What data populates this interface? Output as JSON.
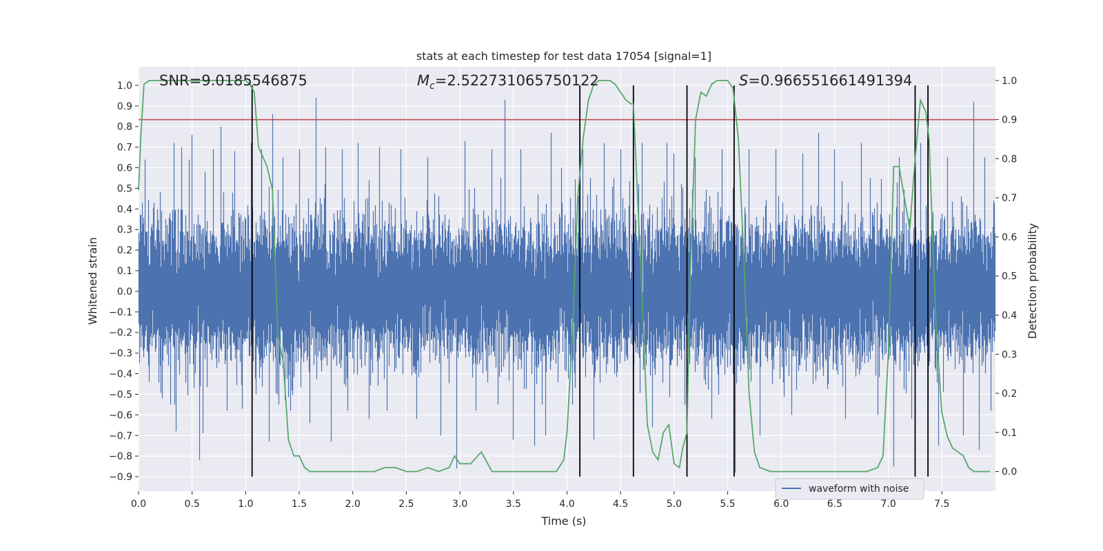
{
  "chart_data": {
    "type": "line",
    "title": "stats at each timestep for test data 17054 [signal=1]",
    "xlabel": "Time (s)",
    "ylabel_left": "Whitened strain",
    "ylabel_right": "Detection probability",
    "xlim": [
      0.0,
      8.0
    ],
    "ylim_left": [
      -0.97,
      1.09
    ],
    "ylim_right": [
      -0.05,
      1.035
    ],
    "x_ticks": [
      0.0,
      0.5,
      1.0,
      1.5,
      2.0,
      2.5,
      3.0,
      3.5,
      4.0,
      4.5,
      5.0,
      5.5,
      6.0,
      6.5,
      7.0,
      7.5
    ],
    "x_tick_labels": [
      "0.0",
      "0.5",
      "1.0",
      "1.5",
      "2.0",
      "2.5",
      "3.0",
      "3.5",
      "4.0",
      "4.5",
      "5.0",
      "5.5",
      "6.0",
      "6.5",
      "7.0",
      "7.5"
    ],
    "y_left_ticks": [
      1.0,
      0.9,
      0.8,
      0.7,
      0.6,
      0.5,
      0.4,
      0.3,
      0.2,
      0.1,
      0.0,
      -0.1,
      -0.2,
      -0.3,
      -0.4,
      -0.5,
      -0.6,
      -0.7,
      -0.8,
      -0.9
    ],
    "y_left_tick_labels": [
      "1.0",
      "0.9",
      "0.8",
      "0.7",
      "0.6",
      "0.5",
      "0.4",
      "0.3",
      "0.2",
      "0.1",
      "0.0",
      "−0.1",
      "−0.2",
      "−0.3",
      "−0.4",
      "−0.5",
      "−0.6",
      "−0.7",
      "−0.8",
      "−0.9"
    ],
    "y_right_ticks": [
      1.0,
      0.9,
      0.8,
      0.7,
      0.6,
      0.5,
      0.4,
      0.3,
      0.2,
      0.1,
      0.0
    ],
    "y_right_tick_labels": [
      "1.0",
      "0.9",
      "0.8",
      "0.7",
      "0.6",
      "0.5",
      "0.4",
      "0.3",
      "0.2",
      "0.1",
      "0.0"
    ],
    "grid": true,
    "legend": {
      "position": "lower-right",
      "entries": [
        {
          "name": "waveform with noise",
          "color": "#4c72b0"
        }
      ]
    },
    "annotations": {
      "snr": "SNR=9.0185546875",
      "mc_symbol": "M",
      "mc_sub": "c",
      "mc_value": "=2.522731065750122",
      "s_symbol": "S",
      "s_value": "=0.966551661491394"
    },
    "threshold": {
      "value": 0.9,
      "axis": "right",
      "color": "#c44e52"
    },
    "vertical_lines": [
      1.06,
      4.12,
      4.62,
      5.12,
      5.56,
      7.25,
      7.37
    ],
    "vertical_line_range_left": [
      -0.9,
      1.0
    ],
    "waveform": {
      "name": "waveform with noise",
      "color": "#4c72b0",
      "sample_rate_hz": 2048,
      "noise_sigma": 0.16,
      "spikes": [
        [
          0.06,
          0.64
        ],
        [
          0.1,
          -0.44
        ],
        [
          0.22,
          -0.52
        ],
        [
          0.33,
          0.72
        ],
        [
          0.35,
          -0.68
        ],
        [
          0.4,
          0.7
        ],
        [
          0.47,
          0.64
        ],
        [
          0.5,
          0.76
        ],
        [
          0.52,
          -0.47
        ],
        [
          0.57,
          -0.82
        ],
        [
          0.6,
          -0.69
        ],
        [
          0.62,
          0.58
        ],
        [
          0.7,
          0.69
        ],
        [
          0.77,
          0.8
        ],
        [
          0.83,
          -0.58
        ],
        [
          0.9,
          0.68
        ],
        [
          0.97,
          -0.57
        ],
        [
          1.05,
          0.72
        ],
        [
          1.1,
          -0.5
        ],
        [
          1.15,
          0.69
        ],
        [
          1.22,
          -0.73
        ],
        [
          1.25,
          0.86
        ],
        [
          1.3,
          -0.5
        ],
        [
          1.35,
          0.65
        ],
        [
          1.42,
          -0.58
        ],
        [
          1.5,
          0.69
        ],
        [
          1.6,
          -0.64
        ],
        [
          1.66,
          0.94
        ],
        [
          1.75,
          0.7
        ],
        [
          1.8,
          -0.73
        ],
        [
          1.9,
          0.69
        ],
        [
          1.95,
          -0.58
        ],
        [
          2.05,
          0.72
        ],
        [
          2.15,
          -0.62
        ],
        [
          2.25,
          0.7
        ],
        [
          2.32,
          -0.58
        ],
        [
          2.45,
          0.69
        ],
        [
          2.6,
          -0.62
        ],
        [
          2.7,
          0.65
        ],
        [
          2.82,
          -0.7
        ],
        [
          2.97,
          -0.86
        ],
        [
          3.05,
          0.73
        ],
        [
          3.15,
          -0.58
        ],
        [
          3.3,
          0.69
        ],
        [
          3.42,
          0.93
        ],
        [
          3.5,
          -0.72
        ],
        [
          3.57,
          0.69
        ],
        [
          3.7,
          -0.75
        ],
        [
          3.8,
          -0.7
        ],
        [
          3.85,
          0.77
        ],
        [
          3.95,
          0.6
        ],
        [
          4.05,
          -0.55
        ],
        [
          4.15,
          0.69
        ],
        [
          4.25,
          -0.72
        ],
        [
          4.35,
          0.72
        ],
        [
          4.5,
          0.69
        ],
        [
          4.62,
          -0.73
        ],
        [
          4.7,
          0.72
        ],
        [
          4.8,
          -0.66
        ],
        [
          4.93,
          0.72
        ],
        [
          5.0,
          0.67
        ],
        [
          5.1,
          -0.55
        ],
        [
          5.2,
          0.65
        ],
        [
          5.35,
          -0.62
        ],
        [
          5.45,
          0.69
        ],
        [
          5.57,
          -0.88
        ],
        [
          5.7,
          0.69
        ],
        [
          5.8,
          -0.7
        ],
        [
          5.95,
          0.69
        ],
        [
          6.1,
          -0.6
        ],
        [
          6.2,
          0.67
        ],
        [
          6.35,
          0.77
        ],
        [
          6.5,
          0.69
        ],
        [
          6.6,
          -0.62
        ],
        [
          6.75,
          0.72
        ],
        [
          6.9,
          -0.6
        ],
        [
          7.05,
          -0.85
        ],
        [
          7.1,
          0.65
        ],
        [
          7.22,
          -0.62
        ],
        [
          7.3,
          0.72
        ],
        [
          7.47,
          -0.75
        ],
        [
          7.55,
          0.65
        ],
        [
          7.7,
          -0.7
        ],
        [
          7.8,
          0.92
        ],
        [
          7.85,
          -0.77
        ],
        [
          7.9,
          0.65
        ],
        [
          7.96,
          -0.58
        ]
      ]
    },
    "probability": {
      "color": "#55a868",
      "x": [
        0.0,
        0.02,
        0.05,
        0.1,
        0.2,
        0.3,
        0.5,
        0.7,
        0.9,
        1.0,
        1.04,
        1.08,
        1.12,
        1.2,
        1.25,
        1.3,
        1.35,
        1.4,
        1.45,
        1.5,
        1.55,
        1.6,
        1.7,
        1.8,
        1.9,
        2.0,
        2.1,
        2.2,
        2.3,
        2.4,
        2.5,
        2.6,
        2.7,
        2.8,
        2.9,
        2.95,
        3.0,
        3.1,
        3.2,
        3.3,
        3.4,
        3.6,
        3.8,
        3.9,
        3.97,
        4.0,
        4.05,
        4.1,
        4.15,
        4.2,
        4.25,
        4.3,
        4.35,
        4.4,
        4.45,
        4.5,
        4.55,
        4.6,
        4.62,
        4.7,
        4.75,
        4.8,
        4.85,
        4.9,
        4.95,
        5.0,
        5.05,
        5.08,
        5.12,
        5.15,
        5.2,
        5.25,
        5.3,
        5.35,
        5.4,
        5.45,
        5.5,
        5.55,
        5.6,
        5.65,
        5.7,
        5.75,
        5.8,
        5.9,
        6.0,
        6.2,
        6.4,
        6.6,
        6.8,
        6.9,
        6.95,
        7.0,
        7.05,
        7.1,
        7.15,
        7.2,
        7.25,
        7.3,
        7.35,
        7.38,
        7.42,
        7.45,
        7.5,
        7.55,
        7.6,
        7.65,
        7.7,
        7.75,
        7.8,
        7.85,
        7.9,
        7.95
      ],
      "y": [
        0.72,
        0.85,
        0.99,
        1.0,
        1.0,
        1.0,
        1.0,
        1.0,
        1.0,
        1.0,
        0.99,
        0.97,
        0.83,
        0.78,
        0.72,
        0.35,
        0.28,
        0.08,
        0.04,
        0.04,
        0.01,
        0.0,
        0.0,
        0.0,
        0.0,
        0.0,
        0.0,
        0.0,
        0.01,
        0.01,
        0.0,
        0.0,
        0.01,
        0.0,
        0.01,
        0.04,
        0.02,
        0.02,
        0.05,
        0.0,
        0.0,
        0.0,
        0.0,
        0.0,
        0.03,
        0.1,
        0.35,
        0.7,
        0.85,
        0.95,
        0.99,
        1.0,
        1.0,
        1.0,
        0.99,
        0.97,
        0.95,
        0.94,
        0.94,
        0.45,
        0.12,
        0.05,
        0.03,
        0.1,
        0.12,
        0.02,
        0.01,
        0.06,
        0.1,
        0.5,
        0.9,
        0.97,
        0.96,
        0.99,
        1.0,
        1.0,
        1.0,
        0.98,
        0.85,
        0.55,
        0.2,
        0.05,
        0.01,
        0.0,
        0.0,
        0.0,
        0.0,
        0.0,
        0.0,
        0.01,
        0.04,
        0.3,
        0.78,
        0.78,
        0.7,
        0.62,
        0.8,
        0.95,
        0.92,
        0.85,
        0.55,
        0.35,
        0.15,
        0.09,
        0.06,
        0.05,
        0.04,
        0.01,
        0.0,
        0.0,
        0.0,
        0.0
      ]
    }
  }
}
